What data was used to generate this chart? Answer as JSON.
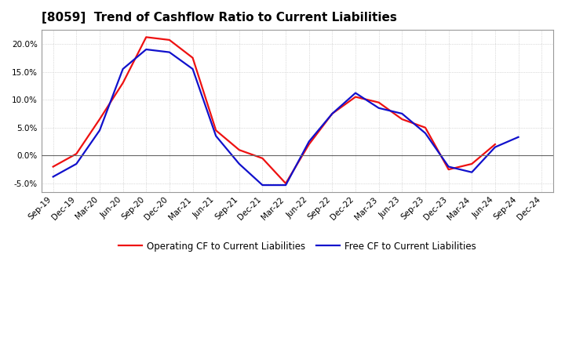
{
  "title": "[8059]  Trend of Cashflow Ratio to Current Liabilities",
  "x_labels": [
    "Sep-19",
    "Dec-19",
    "Mar-20",
    "Jun-20",
    "Sep-20",
    "Dec-20",
    "Mar-21",
    "Jun-21",
    "Sep-21",
    "Dec-21",
    "Mar-22",
    "Jun-22",
    "Sep-22",
    "Dec-22",
    "Mar-23",
    "Jun-23",
    "Sep-23",
    "Dec-23",
    "Mar-24",
    "Jun-24",
    "Sep-24",
    "Dec-24"
  ],
  "operating_cf": [
    -2.0,
    0.3,
    6.5,
    13.0,
    21.2,
    20.7,
    17.5,
    4.5,
    1.0,
    -0.5,
    -5.0,
    2.0,
    7.5,
    10.5,
    9.5,
    6.5,
    5.0,
    -2.5,
    -1.5,
    2.0,
    null,
    null
  ],
  "free_cf": [
    -3.8,
    -1.5,
    4.5,
    15.5,
    19.0,
    18.5,
    15.5,
    3.5,
    -1.5,
    -5.3,
    -5.3,
    2.5,
    7.5,
    11.2,
    8.5,
    7.5,
    4.0,
    -2.0,
    -3.0,
    1.5,
    3.3,
    null
  ],
  "ylim": [
    -6.5,
    22.5
  ],
  "yticks": [
    -5.0,
    0.0,
    5.0,
    10.0,
    15.0,
    20.0
  ],
  "op_color": "#EE1111",
  "free_color": "#1111CC",
  "bg_color": "#FFFFFF",
  "grid_color": "#BBBBBB",
  "legend_op": "Operating CF to Current Liabilities",
  "legend_free": "Free CF to Current Liabilities",
  "title_fontsize": 11,
  "axis_fontsize": 7.5,
  "legend_fontsize": 8.5
}
